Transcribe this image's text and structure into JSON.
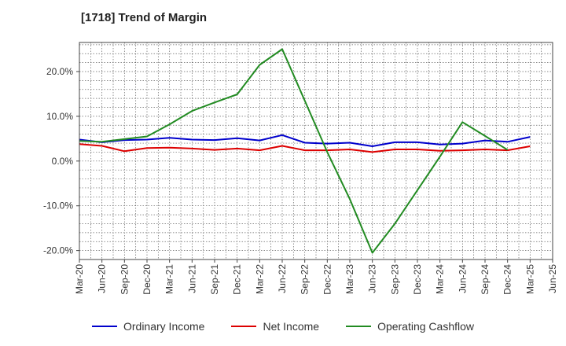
{
  "chart_data": {
    "type": "line",
    "title": "[1718]  Trend of Margin",
    "xlabel": "",
    "ylabel": "",
    "x_ticks": [
      "Mar-20",
      "Jun-20",
      "Sep-20",
      "Dec-20",
      "Mar-21",
      "Jun-21",
      "Sep-21",
      "Dec-21",
      "Mar-22",
      "Jun-22",
      "Sep-22",
      "Dec-22",
      "Mar-23",
      "Jun-23",
      "Sep-23",
      "Dec-23",
      "Mar-24",
      "Jun-24",
      "Sep-24",
      "Dec-24",
      "Mar-25",
      "Jun-25"
    ],
    "y_ticks": [
      20.0,
      10.0,
      0.0,
      -10.0,
      -20.0
    ],
    "y_tick_labels": [
      "20.0%",
      "10.0%",
      "0.0%",
      "-10.0%",
      "-20.0%"
    ],
    "ylim": [
      -22.0,
      26.5
    ],
    "grid": true,
    "legend_position": "bottom",
    "series": [
      {
        "name": "Ordinary Income",
        "color": "#0000cc",
        "x": [
          "Mar-20",
          "Jun-20",
          "Sep-20",
          "Dec-20",
          "Mar-21",
          "Jun-21",
          "Sep-21",
          "Dec-21",
          "Mar-22",
          "Jun-22",
          "Sep-22",
          "Dec-22",
          "Mar-23",
          "Jun-23",
          "Sep-23",
          "Dec-23",
          "Mar-24",
          "Jun-24",
          "Sep-24",
          "Dec-24",
          "Mar-25"
        ],
        "values": [
          4.8,
          4.2,
          4.7,
          4.8,
          5.2,
          4.8,
          4.7,
          5.1,
          4.6,
          5.8,
          4.1,
          3.9,
          4.1,
          3.3,
          4.2,
          4.2,
          3.7,
          3.9,
          4.6,
          4.3,
          5.4
        ]
      },
      {
        "name": "Net Income",
        "color": "#dd0000",
        "x": [
          "Mar-20",
          "Jun-20",
          "Sep-20",
          "Dec-20",
          "Mar-21",
          "Jun-21",
          "Sep-21",
          "Dec-21",
          "Mar-22",
          "Jun-22",
          "Sep-22",
          "Dec-22",
          "Mar-23",
          "Jun-23",
          "Sep-23",
          "Dec-23",
          "Mar-24",
          "Jun-24",
          "Sep-24",
          "Dec-24",
          "Mar-25"
        ],
        "values": [
          3.8,
          3.4,
          2.2,
          2.9,
          3.0,
          2.8,
          2.5,
          2.8,
          2.4,
          3.4,
          2.4,
          2.4,
          2.6,
          2.0,
          2.6,
          2.6,
          2.3,
          2.4,
          2.6,
          2.4,
          3.3
        ]
      },
      {
        "name": "Operating Cashflow",
        "color": "#228b22",
        "x": [
          "Mar-20",
          "Jun-20",
          "Sep-20",
          "Dec-20",
          "Mar-21",
          "Jun-21",
          "Sep-21",
          "Dec-21",
          "Mar-22",
          "Jun-22",
          "Sep-22",
          "Dec-22",
          "Mar-23",
          "Jun-23",
          "Sep-23",
          "Dec-23",
          "Mar-24",
          "Jun-24",
          "Sep-24",
          "Dec-24"
        ],
        "values": [
          4.5,
          4.3,
          4.9,
          5.5,
          8.2,
          11.2,
          13.1,
          14.9,
          21.5,
          25.0,
          13.5,
          2.0,
          -8.5,
          -20.5,
          -14.0,
          -6.5,
          1.0,
          8.7,
          5.6,
          2.5
        ]
      }
    ]
  }
}
